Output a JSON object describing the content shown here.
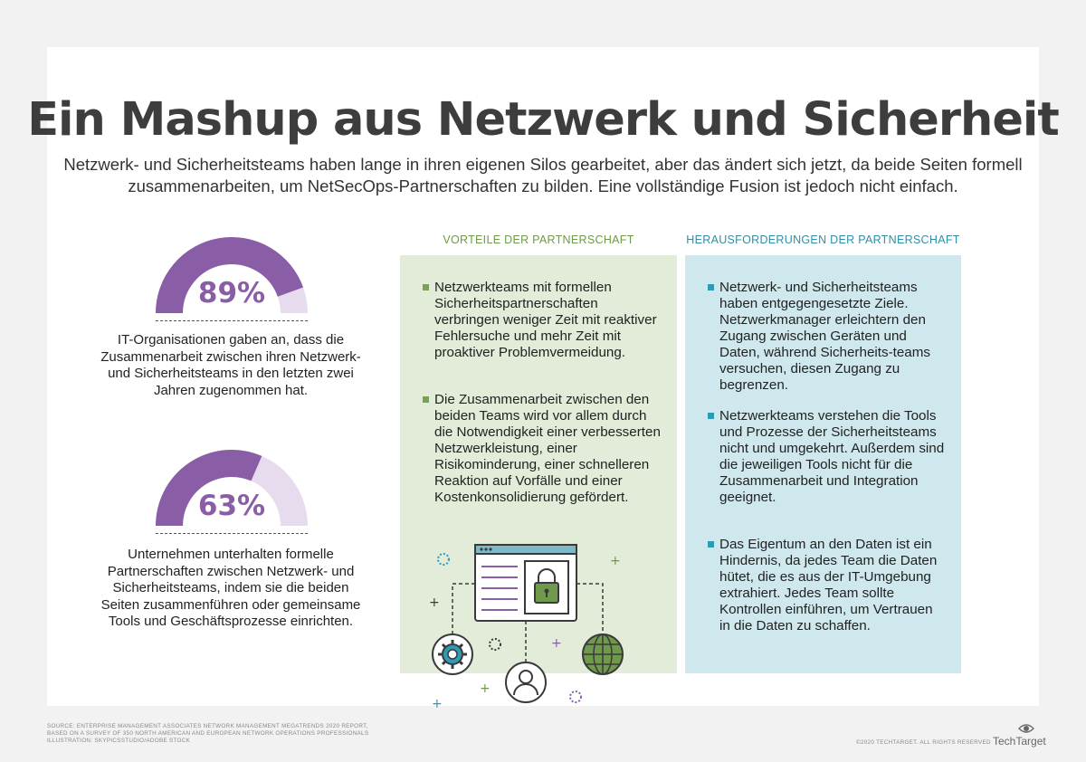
{
  "title": "Ein Mashup aus Netzwerk und Sicherheit",
  "subtitle": "Netzwerk- und Sicherheitsteams haben lange in ihren eigenen Silos gearbeitet, aber das ändert sich jetzt, da beide Seiten formell zusammenarbeiten, um NetSecOps-Partnerschaften zu bilden. Eine vollständige Fusion ist jedoch nicht einfach.",
  "stats": [
    {
      "value_label": "89%",
      "value": 89,
      "text": "IT-Organisationen gaben an, dass die Zusammenarbeit zwischen ihren Netzwerk- und Sicherheitsteams in den letzten zwei Jahren zugenommen hat."
    },
    {
      "value_label": "63%",
      "value": 63,
      "text": "Unternehmen unterhalten formelle Partnerschaften zwischen Netzwerk- und Sicherheitsteams, indem sie die beiden Seiten zusammenführen oder gemeinsame Tools und Geschäftsprozesse einrichten."
    }
  ],
  "benefits": {
    "heading": "VORTEILE DER PARTNERSCHAFT",
    "items": [
      "Netzwerkteams mit formellen Sicherheitspartnerschaften verbringen weniger Zeit mit reaktiver Fehlersuche und mehr Zeit mit proaktiver Problemvermeidung.",
      "Die Zusammenarbeit zwischen den beiden Teams wird vor allem durch die Notwendigkeit einer verbesserten Netzwerkleistung, einer Risikominderung, einer schnelleren Reaktion auf Vorfälle und einer Kostenkonsolidierung gefördert."
    ]
  },
  "challenges": {
    "heading": "HERAUSFORDERUNGEN DER PARTNERSCHAFT",
    "items": [
      "Netzwerk- und Sicherheitsteams haben entgegengesetzte Ziele. Netzwerkmanager erleichtern den Zugang zwischen Geräten und Daten, während Sicherheits-teams versuchen, diesen Zugang zu begrenzen.",
      "Netzwerkteams verstehen die Tools und Prozesse der Sicherheitsteams nicht und umgekehrt. Außerdem sind die jeweiligen Tools nicht für die Zusammenarbeit und Integration geeignet.",
      "Das Eigentum an den Daten ist ein Hindernis, da jedes Team die Daten hütet, die es aus der IT-Umgebung extrahiert. Jedes Team sollte Kontrollen einführen, um Vertrauen in die Daten zu schaffen."
    ]
  },
  "footer": {
    "source_line1": "SOURCE: ENTERPRISE MANAGEMENT ASSOCIATES NETWORK MANAGEMENT MEGATRENDS 2020 REPORT,",
    "source_line2": "BASED ON A SURVEY OF 350 NORTH AMERICAN AND EUROPEAN NETWORK OPERATIONS PROFESSIONALS",
    "source_line3": "ILLUSTRATION: SKYPICSSTUDIO/ADOBE STOCK",
    "copyright": "©2020 TECHTARGET. ALL RIGHTS RESERVED",
    "brand": "TechTarget"
  },
  "colors": {
    "purple": "#8a5ea6",
    "purple_light": "#e6dcee",
    "green_accent": "#6f9a4b",
    "blue_accent": "#2f9bb3",
    "green_panel": "#e3ebd9",
    "blue_panel": "#cfe8ee"
  },
  "icons": [
    "lock-icon",
    "gear-icon",
    "globe-icon",
    "user-icon",
    "browser-window-icon"
  ]
}
